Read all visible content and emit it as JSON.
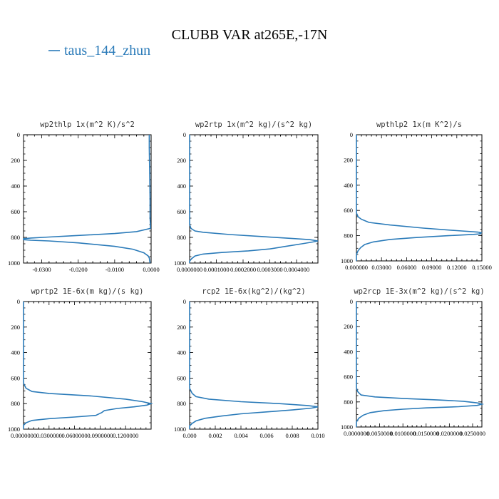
{
  "title": "CLUBB VAR at265E,-17N",
  "legend": [
    {
      "name": "taus_144_zhun",
      "color": "#2b7bb9"
    }
  ],
  "chart_data": [
    {
      "type": "line",
      "title": "wp2thlp  1x(m^2 K)/s^2",
      "xlim": [
        -0.035,
        0.0
      ],
      "ylim": [
        1000,
        0
      ],
      "xticks": [
        -0.03,
        -0.02,
        -0.01,
        0.0
      ],
      "xtick_labels": [
        "-0.0300",
        "-0.0200",
        "-0.0100",
        "0.0000"
      ],
      "yticks": [
        0,
        200,
        400,
        600,
        800,
        1000
      ],
      "ytick_labels": [
        "0",
        "200",
        "400",
        "600",
        "800",
        "1000"
      ],
      "series": [
        {
          "color": "#2b7bb9",
          "points": [
            [
              -0.0005,
              0
            ],
            [
              -0.0005,
              100
            ],
            [
              -0.0004,
              300
            ],
            [
              -0.0003,
              500
            ],
            [
              -0.0003,
              650
            ],
            [
              -0.0002,
              700
            ],
            [
              -0.0002,
              730
            ],
            [
              -0.004,
              755
            ],
            [
              -0.01,
              770
            ],
            [
              -0.02,
              785
            ],
            [
              -0.028,
              797
            ],
            [
              -0.033,
              805
            ],
            [
              -0.035,
              810
            ],
            [
              -0.035,
              818
            ],
            [
              -0.033,
              822
            ],
            [
              -0.028,
              828
            ],
            [
              -0.02,
              843
            ],
            [
              -0.01,
              870
            ],
            [
              -0.005,
              892
            ],
            [
              -0.002,
              920
            ],
            [
              -0.0008,
              945
            ],
            [
              -0.0005,
              960
            ],
            [
              -0.0003,
              1000
            ]
          ]
        }
      ]
    },
    {
      "type": "line",
      "title": "wp2rtp  1x(m^2 kg)/(s^2 kg)",
      "xlim": [
        0.0,
        0.00048
      ],
      "ylim": [
        1000,
        0
      ],
      "xticks": [
        0.0,
        0.0001,
        0.0002,
        0.0003,
        0.0004
      ],
      "xtick_labels": [
        "0.0000000",
        "0.0001000",
        "0.0002000",
        "0.0003000",
        "0.0004000"
      ],
      "yticks": [
        0,
        200,
        400,
        600,
        800,
        1000
      ],
      "ytick_labels": [
        "0",
        "200",
        "400",
        "600",
        "800",
        "1000"
      ],
      "series": [
        {
          "color": "#2b7bb9",
          "points": [
            [
              0.0,
              0
            ],
            [
              0.0,
              500
            ],
            [
              0.0,
              700
            ],
            [
              5e-06,
              730
            ],
            [
              2e-05,
              750
            ],
            [
              5e-05,
              760
            ],
            [
              0.00015,
              778
            ],
            [
              0.00028,
              795
            ],
            [
              0.00038,
              808
            ],
            [
              0.00045,
              818
            ],
            [
              0.00048,
              828
            ],
            [
              0.00046,
              836
            ],
            [
              0.00042,
              850
            ],
            [
              0.00036,
              870
            ],
            [
              0.0003,
              890
            ],
            [
              0.00022,
              905
            ],
            [
              0.00012,
              918
            ],
            [
              5e-05,
              930
            ],
            [
              2e-05,
              945
            ],
            [
              8e-06,
              965
            ],
            [
              0.0,
              985
            ],
            [
              0.0,
              1000
            ]
          ]
        }
      ]
    },
    {
      "type": "line",
      "title": "wpthlp2  1x(m K^2)/s",
      "xlim": [
        0.0,
        0.15
      ],
      "ylim": [
        1000,
        0
      ],
      "xticks": [
        0.0,
        0.03,
        0.06,
        0.09,
        0.12,
        0.15
      ],
      "xtick_labels": [
        "0.000000",
        "0.03000",
        "0.06000",
        "0.09000",
        "0.12000",
        "0.15000"
      ],
      "yticks": [
        0,
        200,
        400,
        600,
        800,
        1000
      ],
      "ytick_labels": [
        "0",
        "200",
        "400",
        "600",
        "800",
        "1000"
      ],
      "series": [
        {
          "color": "#2b7bb9",
          "points": [
            [
              0.0,
              0
            ],
            [
              0.0,
              500
            ],
            [
              0.0,
              620
            ],
            [
              0.002,
              650
            ],
            [
              0.006,
              670
            ],
            [
              0.015,
              695
            ],
            [
              0.04,
              715
            ],
            [
              0.08,
              740
            ],
            [
              0.12,
              760
            ],
            [
              0.145,
              772
            ],
            [
              0.15,
              777
            ],
            [
              0.147,
              781
            ],
            [
              0.149,
              785
            ],
            [
              0.14,
              790
            ],
            [
              0.11,
              800
            ],
            [
              0.07,
              815
            ],
            [
              0.04,
              830
            ],
            [
              0.02,
              850
            ],
            [
              0.01,
              870
            ],
            [
              0.005,
              895
            ],
            [
              0.002,
              920
            ],
            [
              0.0,
              950
            ],
            [
              0.0,
              1000
            ]
          ]
        }
      ]
    },
    {
      "type": "line",
      "title": "wprtp2  1E-6x(m kg)/(s kg)",
      "xlim": [
        0.0,
        0.15
      ],
      "ylim": [
        1000,
        0
      ],
      "xticks": [
        0.0,
        0.03,
        0.06,
        0.09,
        0.12
      ],
      "xtick_labels": [
        "0.0000000",
        "0.0300000",
        "0.0600000",
        "0.0900000",
        "0.1200000"
      ],
      "yticks": [
        0,
        200,
        400,
        600,
        800,
        1000
      ],
      "ytick_labels": [
        "0",
        "200",
        "400",
        "600",
        "800",
        "1000"
      ],
      "series": [
        {
          "color": "#2b7bb9",
          "points": [
            [
              0.0,
              0
            ],
            [
              0.0,
              500
            ],
            [
              0.0,
              640
            ],
            [
              0.003,
              680
            ],
            [
              0.01,
              705
            ],
            [
              0.03,
              720
            ],
            [
              0.08,
              740
            ],
            [
              0.12,
              765
            ],
            [
              0.14,
              785
            ],
            [
              0.15,
              800
            ],
            [
              0.145,
              812
            ],
            [
              0.13,
              825
            ],
            [
              0.11,
              838
            ],
            [
              0.095,
              855
            ],
            [
              0.092,
              870
            ],
            [
              0.085,
              892
            ],
            [
              0.06,
              905
            ],
            [
              0.03,
              918
            ],
            [
              0.01,
              932
            ],
            [
              0.003,
              950
            ],
            [
              0.0,
              970
            ],
            [
              0.0,
              1000
            ]
          ]
        }
      ]
    },
    {
      "type": "line",
      "title": "rcp2  1E-6x(kg^2)/(kg^2)",
      "xlim": [
        0.0,
        0.01
      ],
      "ylim": [
        1000,
        0
      ],
      "xticks": [
        0.0,
        0.002,
        0.004,
        0.006,
        0.008,
        0.01
      ],
      "xtick_labels": [
        "0.000",
        "0.002",
        "0.004",
        "0.006",
        "0.008",
        "0.010"
      ],
      "yticks": [
        0,
        200,
        400,
        600,
        800,
        1000
      ],
      "ytick_labels": [
        "0",
        "200",
        "400",
        "600",
        "800",
        "1000"
      ],
      "series": [
        {
          "color": "#2b7bb9",
          "points": [
            [
              0.0,
              0
            ],
            [
              0.0,
              500
            ],
            [
              0.0,
              680
            ],
            [
              0.0002,
              720
            ],
            [
              0.0005,
              745
            ],
            [
              0.0015,
              765
            ],
            [
              0.004,
              785
            ],
            [
              0.007,
              800
            ],
            [
              0.0092,
              815
            ],
            [
              0.01,
              825
            ],
            [
              0.0095,
              835
            ],
            [
              0.008,
              850
            ],
            [
              0.006,
              865
            ],
            [
              0.004,
              880
            ],
            [
              0.0025,
              897
            ],
            [
              0.0012,
              915
            ],
            [
              0.0005,
              935
            ],
            [
              0.0002,
              955
            ],
            [
              0.0,
              975
            ],
            [
              0.0,
              1000
            ]
          ]
        }
      ]
    },
    {
      "type": "line",
      "title": "wp2rcp  1E-3x(m^2 kg)/(s^2 kg)",
      "xlim": [
        0.0,
        0.027
      ],
      "ylim": [
        1000,
        0
      ],
      "xticks": [
        0.0,
        0.005,
        0.01,
        0.015,
        0.02,
        0.025
      ],
      "xtick_labels": [
        "0.0000000",
        "0.0050000",
        "0.0100000",
        "0.0150000",
        "0.0200000",
        "0.0250000"
      ],
      "yticks": [
        0,
        200,
        400,
        600,
        800,
        1000
      ],
      "ytick_labels": [
        "0",
        "200",
        "400",
        "600",
        "800",
        "1000"
      ],
      "series": [
        {
          "color": "#2b7bb9",
          "points": [
            [
              0.0,
              0
            ],
            [
              0.0,
              500
            ],
            [
              0.0,
              690
            ],
            [
              0.0003,
              720
            ],
            [
              0.001,
              745
            ],
            [
              0.004,
              760
            ],
            [
              0.01,
              772
            ],
            [
              0.018,
              785
            ],
            [
              0.023,
              795
            ],
            [
              0.026,
              808
            ],
            [
              0.027,
              818
            ],
            [
              0.026,
              828
            ],
            [
              0.022,
              838
            ],
            [
              0.015,
              848
            ],
            [
              0.01,
              858
            ],
            [
              0.006,
              870
            ],
            [
              0.003,
              885
            ],
            [
              0.0015,
              905
            ],
            [
              0.0005,
              930
            ],
            [
              0.0,
              960
            ],
            [
              0.0,
              1000
            ]
          ]
        }
      ]
    }
  ]
}
